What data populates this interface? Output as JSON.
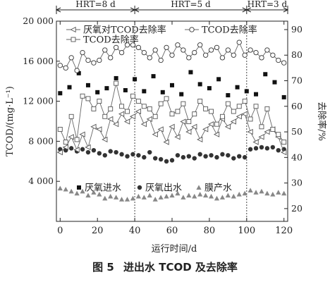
{
  "caption": {
    "number": "图 5",
    "text": "进出水 TCOD 及去除率"
  },
  "chart_data": {
    "type": "scatter",
    "xlabel": "运行时间/d",
    "ylabel_left": "TCOD/(mg·L⁻¹)",
    "ylabel_right": "去除率/%",
    "xlim": [
      -2,
      122
    ],
    "ylim_left": [
      0,
      20000
    ],
    "ylim_right": [
      15,
      93.3
    ],
    "x_ticks": [
      "0",
      "20",
      "40",
      "60",
      "80",
      "100",
      "120"
    ],
    "x_tick_values": [
      0,
      20,
      40,
      60,
      80,
      100,
      120
    ],
    "y_ticks_left": [
      "4 000",
      "8 000",
      "12 000",
      "16 000",
      "20 000"
    ],
    "y_tick_values_left": [
      4000,
      8000,
      12000,
      16000,
      20000
    ],
    "y_ticks_right": [
      "20",
      "30",
      "40",
      "50",
      "60",
      "70",
      "80",
      "90"
    ],
    "y_tick_values_right": [
      20,
      30,
      40,
      50,
      60,
      70,
      80,
      90
    ],
    "phases": [
      {
        "label": "HRT=8 d",
        "start": -2,
        "end": 40
      },
      {
        "label": "HRT=5 d",
        "start": 40,
        "end": 100
      },
      {
        "label": "HRT=3 d",
        "start": 100,
        "end": 122
      }
    ],
    "phase_dividers": [
      40,
      100
    ],
    "series": [
      {
        "name": "厌氧进水",
        "axis": "left",
        "marker": "square-filled",
        "x": [
          0,
          5,
          10,
          15,
          20,
          25,
          30,
          35,
          40,
          45,
          50,
          55,
          60,
          65,
          70,
          75,
          80,
          85,
          90,
          95,
          100,
          105,
          110,
          115,
          120
        ],
        "y": [
          12800,
          13400,
          14800,
          13600,
          12900,
          13300,
          14300,
          13100,
          14200,
          13000,
          14500,
          12900,
          13600,
          12700,
          14900,
          13700,
          13300,
          14200,
          12600,
          13400,
          13000,
          12700,
          14700,
          13900,
          12400
        ]
      },
      {
        "name": "厌氧出水",
        "axis": "left",
        "marker": "circle-filled",
        "x": [
          0,
          3,
          6,
          9,
          12,
          15,
          18,
          21,
          24,
          27,
          30,
          33,
          36,
          39,
          42,
          45,
          48,
          51,
          54,
          57,
          60,
          63,
          66,
          69,
          72,
          75,
          78,
          81,
          84,
          87,
          90,
          93,
          96,
          99,
          102,
          105,
          108,
          111,
          114,
          117,
          120
        ],
        "y": [
          7200,
          7100,
          7300,
          7000,
          7200,
          6900,
          7100,
          6800,
          6600,
          7000,
          6900,
          6700,
          6500,
          6700,
          6600,
          6400,
          6900,
          6300,
          6200,
          6000,
          6100,
          6600,
          6400,
          6500,
          6300,
          6700,
          6500,
          6600,
          6400,
          6700,
          6600,
          6300,
          6500,
          6400,
          7200,
          7300,
          7400,
          7300,
          7400,
          7100,
          7200
        ]
      },
      {
        "name": "膜产水",
        "axis": "left",
        "marker": "triangle-filled",
        "x": [
          0,
          3,
          6,
          9,
          12,
          15,
          18,
          21,
          24,
          27,
          30,
          33,
          36,
          39,
          42,
          45,
          48,
          51,
          54,
          57,
          60,
          63,
          66,
          69,
          72,
          75,
          78,
          81,
          84,
          87,
          90,
          93,
          96,
          99,
          102,
          105,
          108,
          111,
          114,
          117,
          120
        ],
        "y": [
          3300,
          3200,
          3000,
          2800,
          3000,
          2600,
          2900,
          2700,
          2300,
          2500,
          2400,
          2200,
          2200,
          2300,
          2500,
          2400,
          2600,
          2200,
          2400,
          2500,
          2600,
          2800,
          2400,
          2600,
          2500,
          2700,
          2600,
          2500,
          2300,
          2400,
          2600,
          2500,
          2700,
          2800,
          3100,
          2900,
          3000,
          2800,
          2700,
          2900,
          2800
        ]
      },
      {
        "name": "厌氧对TCOD去除率",
        "axis": "right",
        "marker": "triangle-left-open",
        "x": [
          0,
          3,
          6,
          9,
          12,
          15,
          18,
          21,
          24,
          27,
          30,
          33,
          36,
          39,
          42,
          45,
          48,
          51,
          54,
          57,
          60,
          63,
          66,
          69,
          72,
          75,
          78,
          81,
          84,
          87,
          90,
          93,
          96,
          99,
          102,
          105,
          108,
          111,
          114,
          117,
          120
        ],
        "y": [
          42,
          44,
          48,
          43,
          49,
          44,
          52,
          51,
          47,
          55,
          53,
          57,
          54,
          56,
          58,
          53,
          55,
          49,
          51,
          46,
          52,
          48,
          54,
          50,
          52,
          47,
          51,
          53,
          49,
          55,
          52,
          54,
          56,
          57,
          50,
          46,
          48,
          50,
          51,
          48,
          42
        ]
      },
      {
        "name": "TCOD去除率",
        "axis": "right",
        "marker": "square-open",
        "x": [
          0,
          3,
          6,
          9,
          12,
          15,
          18,
          21,
          24,
          27,
          30,
          33,
          36,
          39,
          42,
          45,
          48,
          51,
          54,
          57,
          60,
          63,
          66,
          69,
          72,
          75,
          78,
          81,
          84,
          87,
          90,
          93,
          96,
          99,
          102,
          105,
          108,
          111,
          114,
          117,
          120
        ],
        "y": [
          51,
          46,
          56,
          47,
          64,
          63,
          59,
          62,
          56,
          59,
          69,
          60,
          58,
          64,
          62,
          60,
          59,
          56,
          61,
          63,
          57,
          58,
          61,
          54,
          57,
          62,
          59,
          58,
          53,
          56,
          61,
          58,
          60,
          62,
          55,
          60,
          52,
          59,
          51,
          49,
          46
        ]
      },
      {
        "name": "TCOD去除率",
        "axis": "right",
        "marker": "circle-open",
        "x": [
          0,
          3,
          6,
          9,
          12,
          15,
          18,
          21,
          24,
          27,
          30,
          33,
          36,
          39,
          42,
          45,
          48,
          51,
          54,
          57,
          60,
          63,
          66,
          69,
          72,
          75,
          78,
          81,
          84,
          87,
          90,
          93,
          96,
          99,
          102,
          105,
          108,
          111,
          114,
          117,
          120
        ],
        "y": [
          76,
          75,
          79,
          74,
          81,
          78,
          77,
          78,
          82,
          79,
          83,
          81,
          84,
          84,
          83,
          81,
          79,
          82,
          78,
          83,
          80,
          84,
          82,
          79,
          81,
          84,
          80,
          82,
          83,
          79,
          82,
          80,
          85,
          80,
          82,
          81,
          79,
          82,
          80,
          78,
          77
        ]
      }
    ],
    "legend_top": [
      {
        "label": "厌氧对TCOD去除率",
        "marker": "triangle-left-open"
      },
      {
        "label": "TCOD去除率",
        "marker": "circle-open"
      },
      {
        "label": "TCOD去除率",
        "marker": "square-open"
      }
    ],
    "legend_bottom": [
      {
        "label": "厌氧进水",
        "marker": "square-filled"
      },
      {
        "label": "厌氧出水",
        "marker": "circle-filled"
      },
      {
        "label": "膜产水",
        "marker": "triangle-filled"
      }
    ]
  }
}
